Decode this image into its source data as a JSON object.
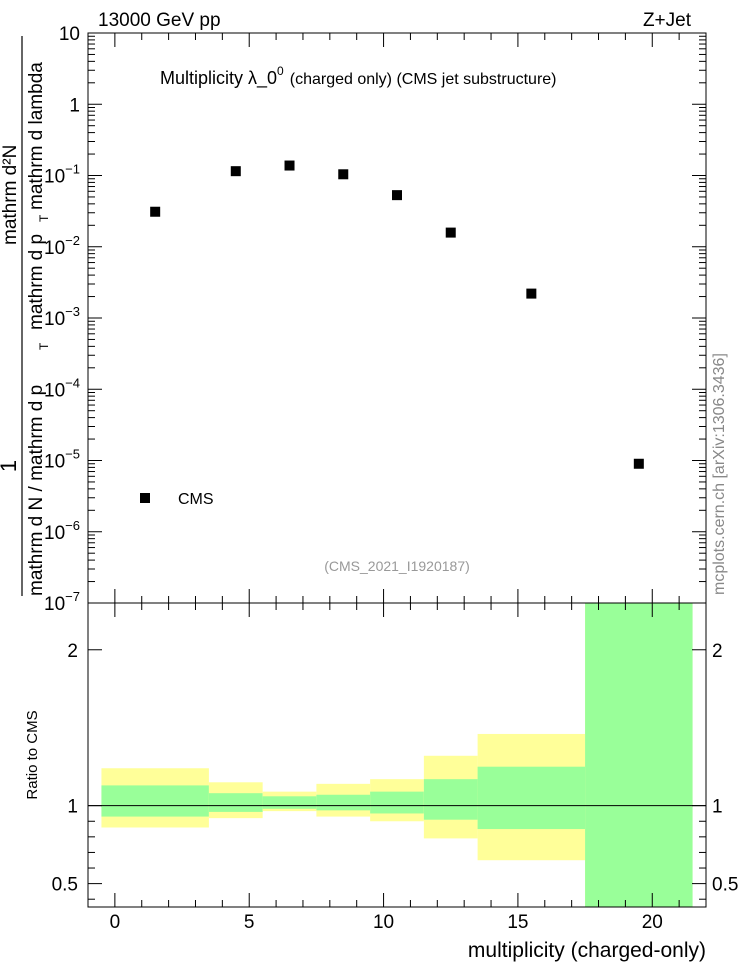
{
  "header": {
    "energy": "13000 GeV pp",
    "process": "Z+Jet"
  },
  "watermark": "mcplots.cern.ch [arXiv:1306.3436]",
  "analysis_id": "(CMS_2021_I1920187)",
  "chart_data": [
    {
      "type": "scatter",
      "title_main": "Multiplicity  λ_0",
      "title_sup": "0",
      "title_rest": "(charged only) (CMS jet substructure)",
      "ylabel_num": "1",
      "ylabel_den": "mathrm d N / mathrm d p",
      "ylabel_num2": "mathrm d²N",
      "ylabel_num2_den": "mathrm d p",
      "ylabel_lambda": "mathrm d lambda",
      "ylabel_sub": "T",
      "yscale": "log",
      "ylim": [
        1e-07,
        10
      ],
      "xlim": [
        -1,
        22
      ],
      "y_ticks": [
        {
          "base": "10",
          "exp": "−7",
          "value": 1e-07
        },
        {
          "base": "10",
          "exp": "−6",
          "value": 1e-06
        },
        {
          "base": "10",
          "exp": "−5",
          "value": 1e-05
        },
        {
          "base": "10",
          "exp": "−4",
          "value": 0.0001
        },
        {
          "base": "10",
          "exp": "−3",
          "value": 0.001
        },
        {
          "base": "10",
          "exp": "−2",
          "value": 0.01
        },
        {
          "base": "10",
          "exp": "−1",
          "value": 0.1
        },
        {
          "base": "1",
          "exp": "",
          "value": 1
        },
        {
          "base": "10",
          "exp": "",
          "value": 10
        }
      ],
      "series": [
        {
          "name": "CMS",
          "points": [
            {
              "x": 1.5,
              "y": 0.031
            },
            {
              "x": 4.5,
              "y": 0.115
            },
            {
              "x": 6.5,
              "y": 0.138
            },
            {
              "x": 8.5,
              "y": 0.104
            },
            {
              "x": 10.5,
              "y": 0.053
            },
            {
              "x": 12.5,
              "y": 0.0158
            },
            {
              "x": 15.5,
              "y": 0.0022
            },
            {
              "x": 19.5,
              "y": 9e-06
            }
          ]
        }
      ],
      "legend": {
        "entries": [
          "CMS"
        ],
        "position": "bottom-left"
      }
    },
    {
      "type": "area",
      "ylabel": "Ratio to CMS",
      "xlabel": "multiplicity (charged-only)",
      "xlim": [
        -1,
        22
      ],
      "ylim": [
        0.35,
        2.3
      ],
      "x_ticks": [
        {
          "label": "0",
          "value": 0
        },
        {
          "label": "5",
          "value": 5
        },
        {
          "label": "10",
          "value": 10
        },
        {
          "label": "15",
          "value": 15
        },
        {
          "label": "20",
          "value": 20
        }
      ],
      "y_ticks": [
        {
          "label": "0.5",
          "value": 0.5
        },
        {
          "label": "1",
          "value": 1
        },
        {
          "label": "2",
          "value": 2
        }
      ],
      "reference_line": 1,
      "bands": [
        {
          "x0": -0.5,
          "x1": 3.5,
          "yellow": [
            0.86,
            1.24
          ],
          "green": [
            0.93,
            1.13
          ]
        },
        {
          "x0": 3.5,
          "x1": 5.5,
          "yellow": [
            0.92,
            1.15
          ],
          "green": [
            0.96,
            1.08
          ]
        },
        {
          "x0": 5.5,
          "x1": 7.5,
          "yellow": [
            0.965,
            1.09
          ],
          "green": [
            0.98,
            1.06
          ]
        },
        {
          "x0": 7.5,
          "x1": 9.5,
          "yellow": [
            0.93,
            1.14
          ],
          "green": [
            0.97,
            1.07
          ]
        },
        {
          "x0": 9.5,
          "x1": 11.5,
          "yellow": [
            0.9,
            1.17
          ],
          "green": [
            0.95,
            1.09
          ]
        },
        {
          "x0": 11.5,
          "x1": 13.5,
          "yellow": [
            0.79,
            1.32
          ],
          "green": [
            0.91,
            1.17
          ]
        },
        {
          "x0": 13.5,
          "x1": 17.5,
          "yellow": [
            0.65,
            1.46
          ],
          "green": [
            0.85,
            1.25
          ]
        },
        {
          "x0": 17.5,
          "x1": 21.5,
          "yellow": [
            0.35,
            2.3
          ],
          "green": [
            0.35,
            2.3
          ]
        }
      ],
      "colors": {
        "yellow": "#ffff99",
        "green": "#99ff99"
      }
    }
  ]
}
